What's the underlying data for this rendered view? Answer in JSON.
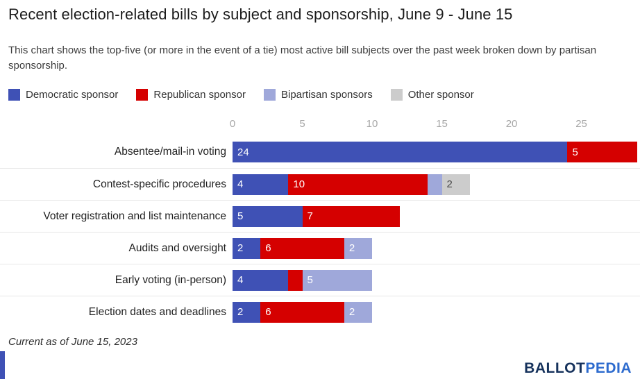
{
  "header": {
    "title": "Recent election-related bills by subject and sponsorship, June 9 - June 15",
    "subtitle": "This chart shows the top-five (or more in the event of a tie) most active bill subjects over the past week broken down by partisan sponsorship."
  },
  "legend": [
    {
      "label": "Democratic sponsor",
      "color": "#3f51b5"
    },
    {
      "label": "Republican sponsor",
      "color": "#d50000"
    },
    {
      "label": "Bipartisan sponsors",
      "color": "#9fa8da"
    },
    {
      "label": "Other sponsor",
      "color": "#cccccc"
    }
  ],
  "chart_data": {
    "type": "bar",
    "orientation": "horizontal",
    "stacked": true,
    "title": "Recent election-related bills by subject and sponsorship, June 9 - June 15",
    "categories": [
      "Absentee/mail-in voting",
      "Contest-specific procedures",
      "Voter registration and list maintenance",
      "Audits and oversight",
      "Early voting (in-person)",
      "Election dates and deadlines"
    ],
    "series": [
      {
        "name": "Democratic sponsor",
        "color": "#3f51b5",
        "label_color": "#ffffff",
        "values": [
          24,
          4,
          5,
          2,
          4,
          2
        ]
      },
      {
        "name": "Republican sponsor",
        "color": "#d50000",
        "label_color": "#ffffff",
        "values": [
          5,
          10,
          7,
          6,
          1,
          6
        ]
      },
      {
        "name": "Bipartisan sponsors",
        "color": "#9fa8da",
        "label_color": "#ffffff",
        "values": [
          0,
          1,
          0,
          2,
          5,
          2
        ]
      },
      {
        "name": "Other sponsor",
        "color": "#cccccc",
        "label_color": "#4a4a4a",
        "values": [
          0,
          2,
          0,
          0,
          0,
          0
        ]
      }
    ],
    "x_ticks": [
      0,
      5,
      10,
      15,
      20,
      25
    ],
    "xlim": [
      0,
      29.2
    ],
    "label_min": 2,
    "grid": "row-separators",
    "legend_position": "top"
  },
  "footer": {
    "note": "Current as of June 15, 2023",
    "logo": {
      "part1": "BALLOT",
      "part2": "PEDIA"
    }
  },
  "decor": {
    "left_strip_color": "#3f51b5"
  }
}
